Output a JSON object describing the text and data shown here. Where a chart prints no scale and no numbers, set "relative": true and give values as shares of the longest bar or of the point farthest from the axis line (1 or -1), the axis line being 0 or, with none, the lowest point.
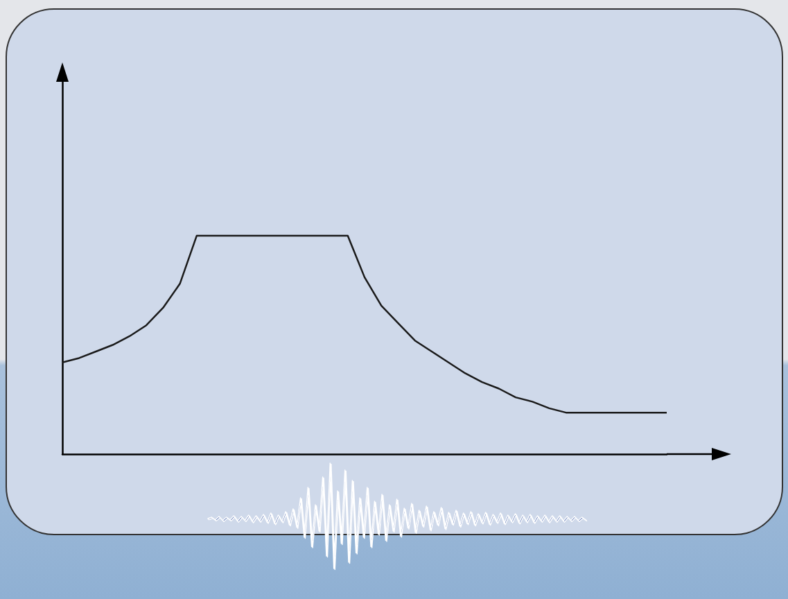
{
  "chart_data": {
    "type": "line",
    "relative": true,
    "marker": "none",
    "line_style": "solid",
    "categories": [
      null,
      null,
      null,
      null,
      null,
      null,
      null,
      null,
      null,
      null,
      null,
      null,
      null,
      null,
      null,
      null,
      null,
      null,
      null,
      null,
      null,
      null,
      null,
      null,
      null,
      null,
      null,
      null,
      null,
      null,
      null,
      null,
      null,
      null,
      null,
      null,
      null
    ],
    "series": [
      {
        "color": "#1a1a1a",
        "values": [
          0.42,
          0.44,
          0.47,
          0.5,
          0.54,
          0.59,
          0.67,
          0.78,
          1,
          1,
          1,
          1,
          1,
          1,
          1,
          1,
          1,
          1,
          0.81,
          0.68,
          0.6,
          0.52,
          0.47,
          0.42,
          0.37,
          0.33,
          0.3,
          0.26,
          0.24,
          0.21,
          0.19,
          0.19,
          0.19,
          0.19,
          0.19,
          0.19,
          0.19
        ]
      }
    ]
  }
}
